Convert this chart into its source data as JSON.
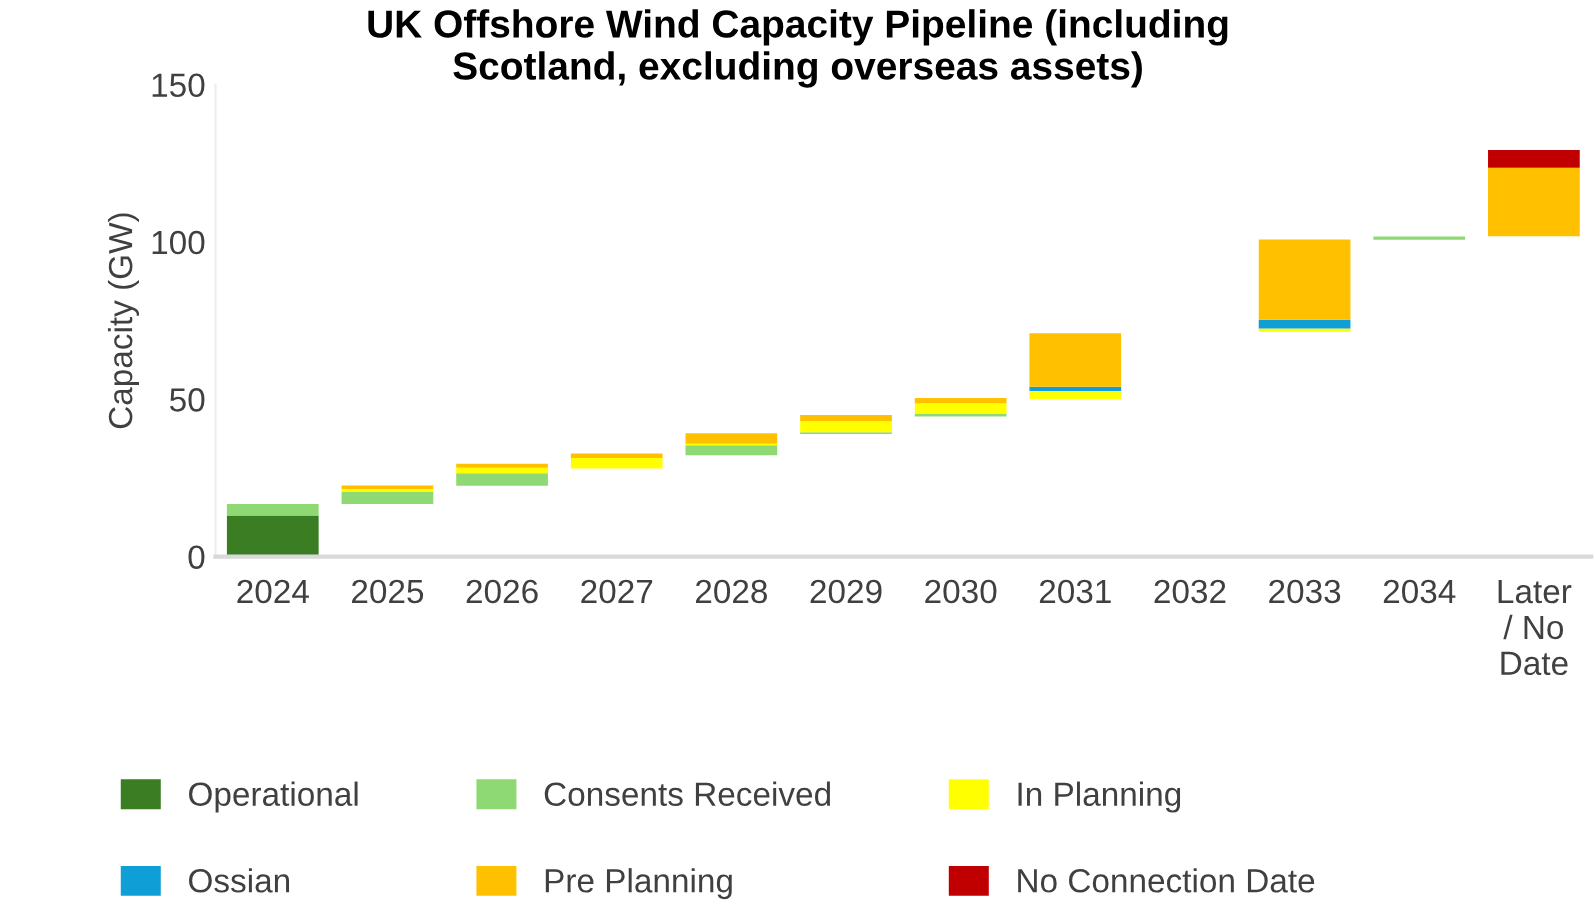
{
  "chart_data": {
    "type": "bar",
    "title": "UK Offshore Wind Capacity Pipeline (including\nScotland, excluding overseas assets)",
    "ylabel": "Capacity (GW)",
    "categories": [
      "2024",
      "2025",
      "2026",
      "2027",
      "2028",
      "2029",
      "2030",
      "2031",
      "2032",
      "2033",
      "2034",
      "Later\n/ No\nDate"
    ],
    "series": [
      {
        "name": "Operational",
        "color": "#3a7d22",
        "base": [
          0,
          null,
          null,
          null,
          null,
          null,
          null,
          null,
          null,
          null,
          null,
          null
        ],
        "values": [
          13.1,
          null,
          null,
          null,
          null,
          null,
          null,
          null,
          null,
          null,
          null,
          null
        ]
      },
      {
        "name": "Consents Received",
        "color": "#8ed973",
        "base": [
          13.1,
          16.7,
          22.5,
          null,
          32.2,
          39,
          44.5,
          null,
          null,
          null,
          100.7,
          null
        ],
        "values": [
          3.6,
          4.0,
          4.0,
          null,
          3.2,
          0.5,
          1.0,
          null,
          null,
          null,
          1.0,
          null
        ]
      },
      {
        "name": "In Planning",
        "color": "#ffff00",
        "base": [
          null,
          20.7,
          26.5,
          28,
          35.4,
          39.5,
          45.5,
          50,
          null,
          71.5,
          null,
          null
        ],
        "values": [
          null,
          0.8,
          1.7,
          3.3,
          0.5,
          3.5,
          3.2,
          2.6,
          null,
          1.0,
          null,
          null
        ]
      },
      {
        "name": "Ossian",
        "color": "#0f9ed5",
        "base": [
          null,
          null,
          null,
          null,
          null,
          null,
          null,
          52.6,
          null,
          72.5,
          null,
          null
        ],
        "values": [
          null,
          null,
          null,
          null,
          null,
          null,
          null,
          1.4,
          null,
          2.8,
          null,
          null
        ]
      },
      {
        "name": "Pre Planning",
        "color": "#ffc000",
        "base": [
          null,
          21.5,
          28.2,
          31.3,
          35.9,
          43,
          48.7,
          54,
          null,
          75.3,
          null,
          101.8
        ],
        "values": [
          null,
          1.1,
          1.3,
          1.5,
          3.3,
          2.0,
          1.7,
          17.0,
          null,
          25.5,
          null,
          21.8
        ]
      },
      {
        "name": "No Connection Date",
        "color": "#c00000",
        "base": [
          null,
          null,
          null,
          null,
          null,
          null,
          null,
          null,
          null,
          null,
          null,
          123.6
        ],
        "values": [
          null,
          null,
          null,
          null,
          null,
          null,
          null,
          null,
          null,
          null,
          null,
          5.6
        ]
      }
    ],
    "ylim": [
      0,
      150
    ],
    "yticks": [
      0,
      50,
      100,
      150
    ],
    "legend": "bottom"
  }
}
